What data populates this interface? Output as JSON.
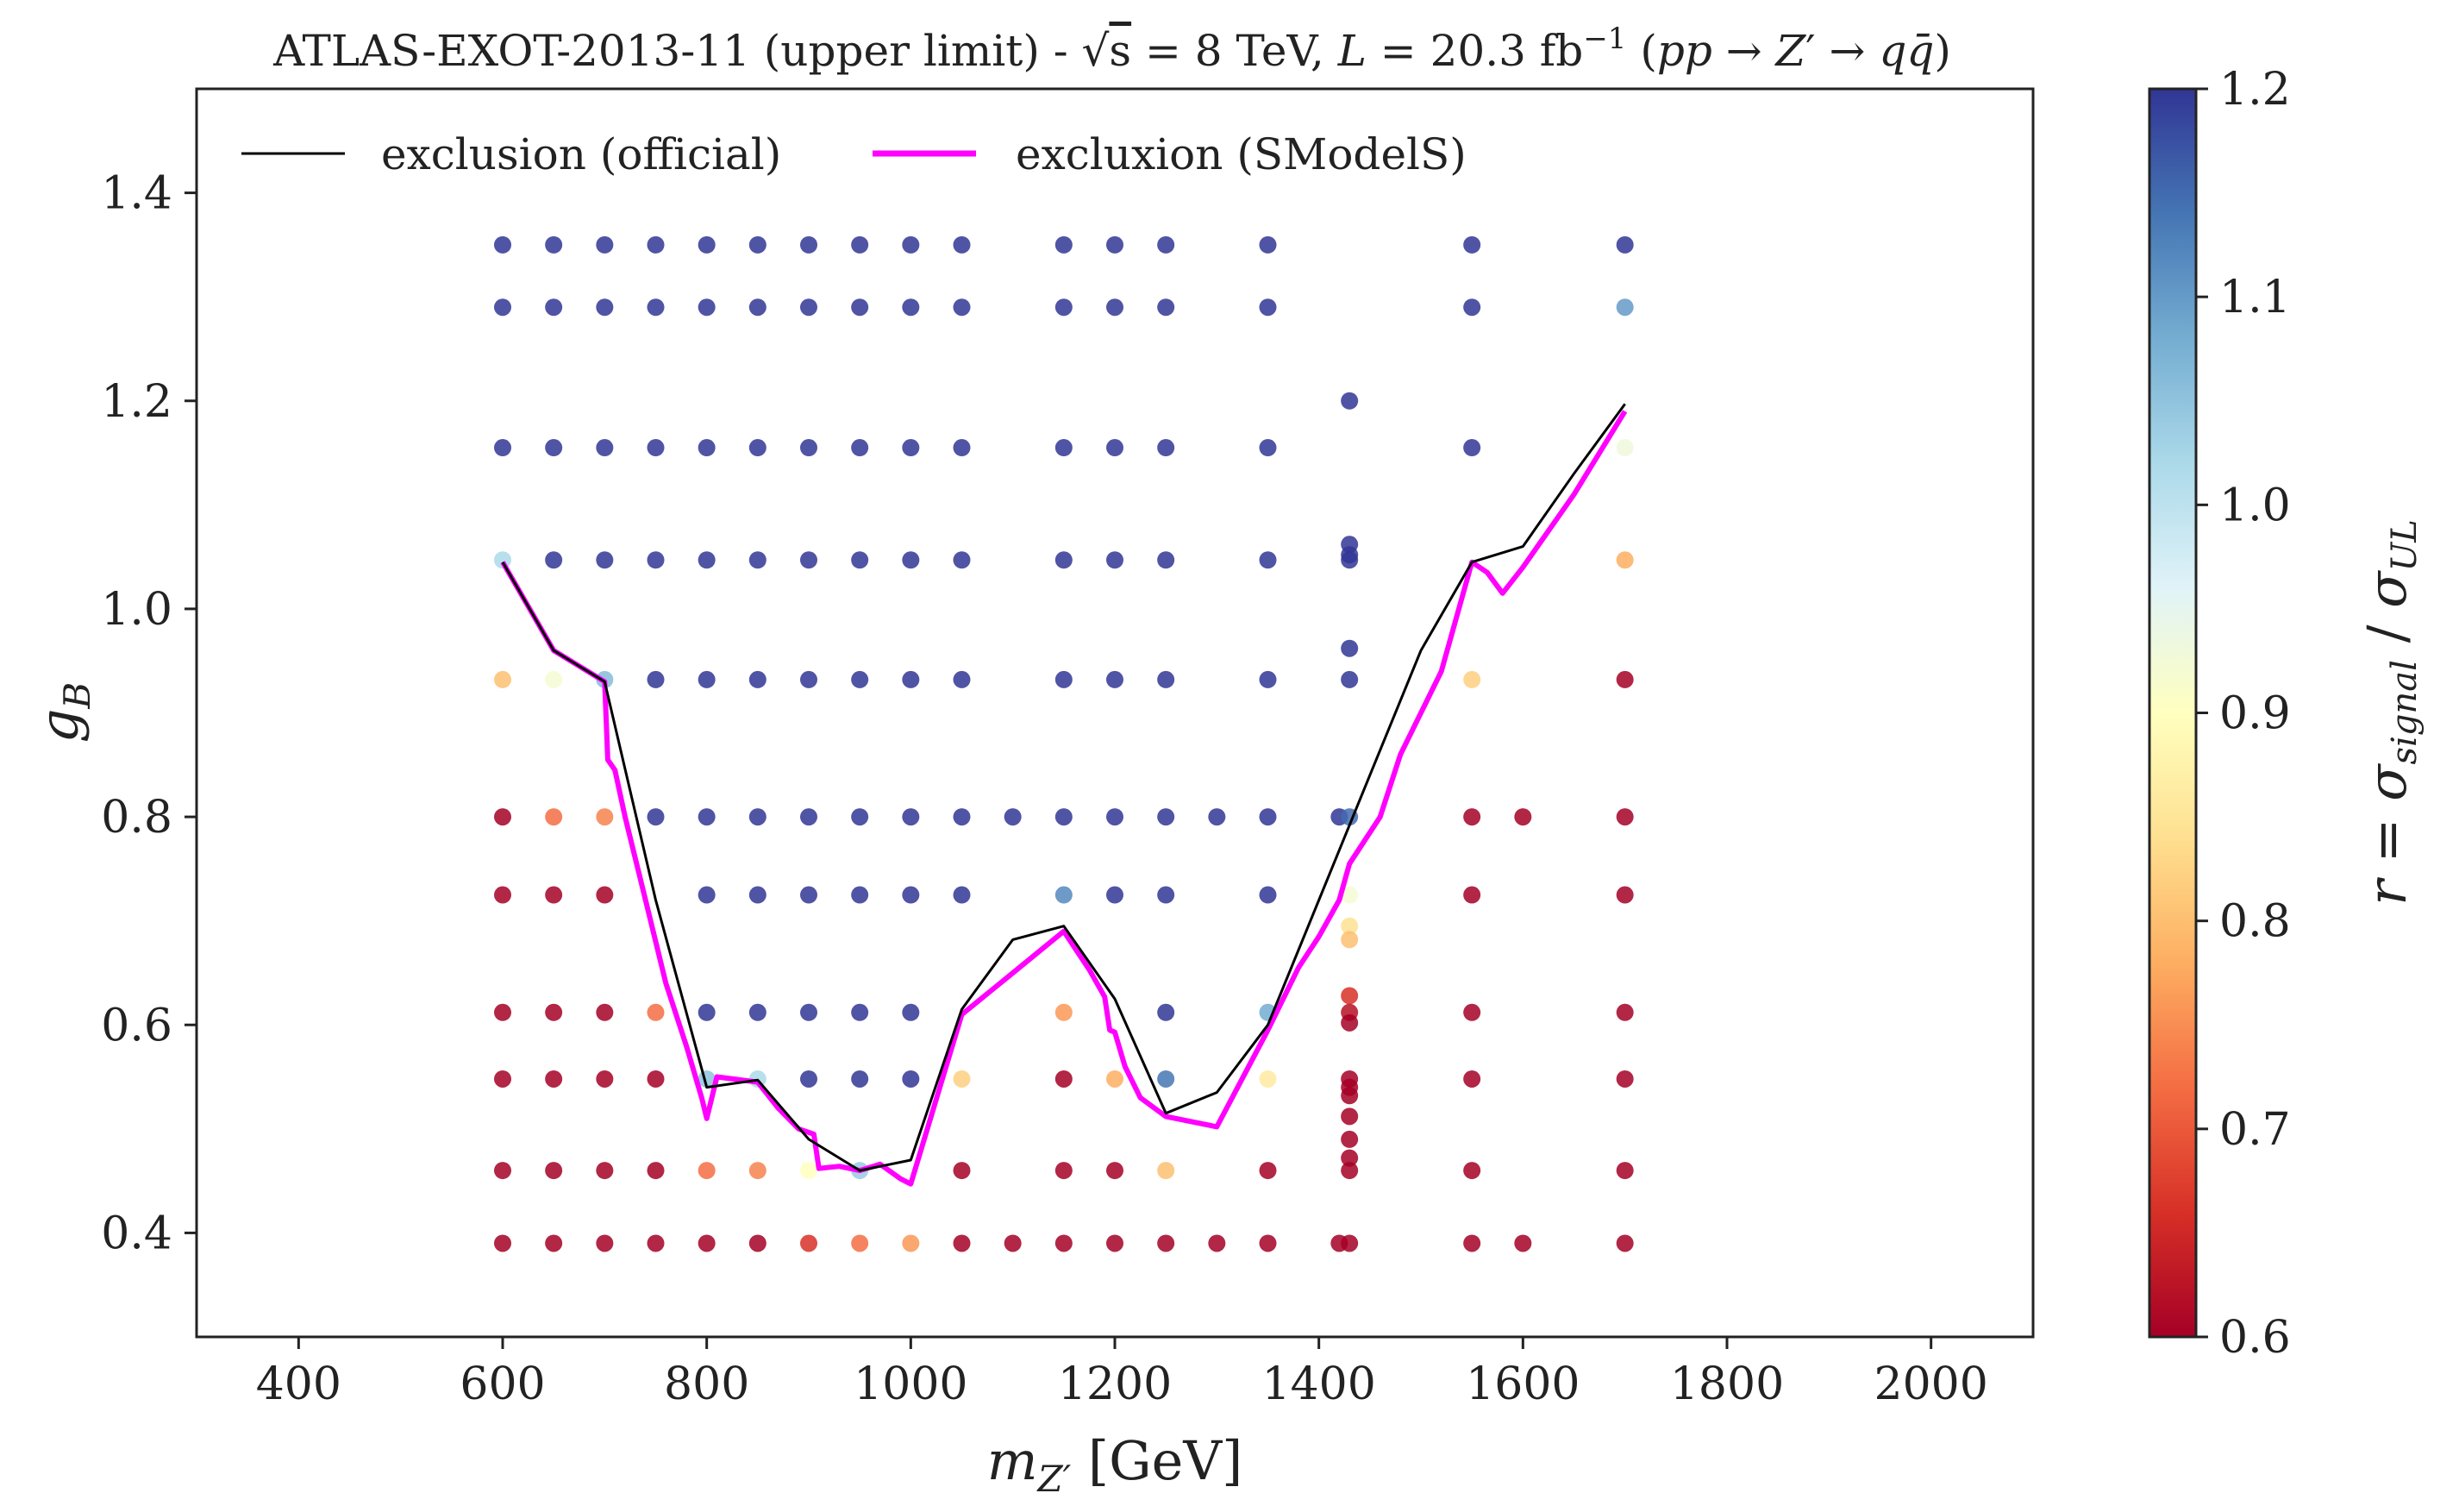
{
  "chart_data": {
    "type": "scatter",
    "title": "ATLAS-EXOT-2013-11 (upper limit) - √s = 8 TeV, L = 20.3 fb⁻¹ (pp → Z′ → qq̄)",
    "xlabel": "m_{Z′} [GeV]",
    "ylabel": "g_B",
    "xlim": [
      300,
      2100
    ],
    "ylim": [
      0.3,
      1.5
    ],
    "xticks": [
      400,
      600,
      800,
      1000,
      1200,
      1400,
      1600,
      1800,
      2000
    ],
    "yticks": [
      0.4,
      0.6,
      0.8,
      1.0,
      1.2,
      1.4
    ],
    "xtick_labels": [
      "400",
      "600",
      "800",
      "1000",
      "1200",
      "1400",
      "1600",
      "1800",
      "2000"
    ],
    "ytick_labels": [
      "0.4",
      "0.6",
      "0.8",
      "1.0",
      "1.2",
      "1.4"
    ],
    "grid": false,
    "legend_position": "top-left",
    "legend": [
      {
        "label": "exclusion (official)",
        "color": "#000000"
      },
      {
        "label": "excluxion (SModelS)",
        "color": "#ff00ff"
      }
    ],
    "colorbar": {
      "label": "r = σ_signal / σ_UL",
      "range": [
        0.6,
        1.2
      ],
      "ticks": [
        0.6,
        0.7,
        0.8,
        0.9,
        1.0,
        1.1,
        1.2
      ],
      "tick_labels": [
        "0.6",
        "0.7",
        "0.8",
        "0.9",
        "1.0",
        "1.1",
        "1.2"
      ],
      "colormap": "RdYlBu",
      "stops": [
        "#a50026",
        "#d73027",
        "#f46d43",
        "#fdae61",
        "#fee090",
        "#ffffbf",
        "#e0f3f8",
        "#abd9e9",
        "#74add1",
        "#4575b4",
        "#313695"
      ]
    },
    "official_curve": {
      "x": [
        600,
        650,
        700,
        750,
        800,
        850,
        900,
        950,
        1000,
        1050,
        1100,
        1150,
        1200,
        1250,
        1300,
        1350,
        1400,
        1450,
        1500,
        1550,
        1600,
        1650,
        1700
      ],
      "y": [
        1.045,
        0.96,
        0.93,
        0.72,
        0.54,
        0.547,
        0.49,
        0.46,
        0.47,
        0.615,
        0.682,
        0.695,
        0.625,
        0.515,
        0.535,
        0.6,
        0.72,
        0.84,
        0.96,
        1.045,
        1.06,
        1.13,
        1.197
      ]
    },
    "smodels_curve": {
      "x": [
        600,
        650,
        700,
        703,
        710,
        720,
        740,
        760,
        780,
        795,
        800,
        810,
        850,
        870,
        890,
        905,
        910,
        930,
        950,
        970,
        990,
        1000,
        1050,
        1100,
        1150,
        1175,
        1190,
        1195,
        1200,
        1210,
        1225,
        1250,
        1300,
        1350,
        1380,
        1400,
        1420,
        1430,
        1440,
        1460,
        1480,
        1520,
        1550,
        1565,
        1580,
        1600,
        1650,
        1700
      ],
      "y": [
        1.045,
        0.96,
        0.93,
        0.855,
        0.845,
        0.8,
        0.72,
        0.64,
        0.58,
        0.53,
        0.51,
        0.55,
        0.545,
        0.52,
        0.5,
        0.495,
        0.462,
        0.464,
        0.46,
        0.466,
        0.452,
        0.447,
        0.61,
        0.65,
        0.69,
        0.653,
        0.627,
        0.595,
        0.593,
        0.56,
        0.53,
        0.512,
        0.502,
        0.595,
        0.655,
        0.685,
        0.72,
        0.755,
        0.77,
        0.8,
        0.86,
        0.94,
        1.045,
        1.035,
        1.015,
        1.04,
        1.11,
        1.19
      ]
    },
    "points": [
      {
        "x": 600,
        "y": 1.35,
        "r": 1.2
      },
      {
        "x": 650,
        "y": 1.35,
        "r": 1.2
      },
      {
        "x": 700,
        "y": 1.35,
        "r": 1.2
      },
      {
        "x": 750,
        "y": 1.35,
        "r": 1.2
      },
      {
        "x": 800,
        "y": 1.35,
        "r": 1.2
      },
      {
        "x": 850,
        "y": 1.35,
        "r": 1.2
      },
      {
        "x": 900,
        "y": 1.35,
        "r": 1.2
      },
      {
        "x": 950,
        "y": 1.35,
        "r": 1.2
      },
      {
        "x": 1000,
        "y": 1.35,
        "r": 1.2
      },
      {
        "x": 1050,
        "y": 1.35,
        "r": 1.2
      },
      {
        "x": 1150,
        "y": 1.35,
        "r": 1.2
      },
      {
        "x": 1200,
        "y": 1.35,
        "r": 1.2
      },
      {
        "x": 1250,
        "y": 1.35,
        "r": 1.2
      },
      {
        "x": 1350,
        "y": 1.35,
        "r": 1.2
      },
      {
        "x": 1550,
        "y": 1.35,
        "r": 1.2
      },
      {
        "x": 1700,
        "y": 1.35,
        "r": 1.2
      },
      {
        "x": 600,
        "y": 1.29,
        "r": 1.2
      },
      {
        "x": 650,
        "y": 1.29,
        "r": 1.2
      },
      {
        "x": 700,
        "y": 1.29,
        "r": 1.2
      },
      {
        "x": 750,
        "y": 1.29,
        "r": 1.2
      },
      {
        "x": 800,
        "y": 1.29,
        "r": 1.2
      },
      {
        "x": 850,
        "y": 1.29,
        "r": 1.2
      },
      {
        "x": 900,
        "y": 1.29,
        "r": 1.2
      },
      {
        "x": 950,
        "y": 1.29,
        "r": 1.2
      },
      {
        "x": 1000,
        "y": 1.29,
        "r": 1.2
      },
      {
        "x": 1050,
        "y": 1.29,
        "r": 1.2
      },
      {
        "x": 1150,
        "y": 1.29,
        "r": 1.2
      },
      {
        "x": 1200,
        "y": 1.29,
        "r": 1.2
      },
      {
        "x": 1250,
        "y": 1.29,
        "r": 1.2
      },
      {
        "x": 1350,
        "y": 1.29,
        "r": 1.2
      },
      {
        "x": 1550,
        "y": 1.29,
        "r": 1.2
      },
      {
        "x": 1700,
        "y": 1.29,
        "r": 1.1
      },
      {
        "x": 1430,
        "y": 1.2,
        "r": 1.2
      },
      {
        "x": 600,
        "y": 1.155,
        "r": 1.2
      },
      {
        "x": 650,
        "y": 1.155,
        "r": 1.2
      },
      {
        "x": 700,
        "y": 1.155,
        "r": 1.2
      },
      {
        "x": 750,
        "y": 1.155,
        "r": 1.2
      },
      {
        "x": 800,
        "y": 1.155,
        "r": 1.2
      },
      {
        "x": 850,
        "y": 1.155,
        "r": 1.2
      },
      {
        "x": 900,
        "y": 1.155,
        "r": 1.2
      },
      {
        "x": 950,
        "y": 1.155,
        "r": 1.2
      },
      {
        "x": 1000,
        "y": 1.155,
        "r": 1.2
      },
      {
        "x": 1050,
        "y": 1.155,
        "r": 1.2
      },
      {
        "x": 1150,
        "y": 1.155,
        "r": 1.2
      },
      {
        "x": 1200,
        "y": 1.155,
        "r": 1.2
      },
      {
        "x": 1250,
        "y": 1.155,
        "r": 1.2
      },
      {
        "x": 1350,
        "y": 1.155,
        "r": 1.2
      },
      {
        "x": 1550,
        "y": 1.155,
        "r": 1.2
      },
      {
        "x": 1700,
        "y": 1.155,
        "r": 0.93
      },
      {
        "x": 1430,
        "y": 1.062,
        "r": 1.2
      },
      {
        "x": 1430,
        "y": 1.052,
        "r": 1.2
      },
      {
        "x": 600,
        "y": 1.047,
        "r": 1.02
      },
      {
        "x": 650,
        "y": 1.047,
        "r": 1.2
      },
      {
        "x": 700,
        "y": 1.047,
        "r": 1.2
      },
      {
        "x": 750,
        "y": 1.047,
        "r": 1.2
      },
      {
        "x": 800,
        "y": 1.047,
        "r": 1.2
      },
      {
        "x": 850,
        "y": 1.047,
        "r": 1.2
      },
      {
        "x": 900,
        "y": 1.047,
        "r": 1.2
      },
      {
        "x": 950,
        "y": 1.047,
        "r": 1.2
      },
      {
        "x": 1000,
        "y": 1.047,
        "r": 1.2
      },
      {
        "x": 1050,
        "y": 1.047,
        "r": 1.2
      },
      {
        "x": 1150,
        "y": 1.047,
        "r": 1.2
      },
      {
        "x": 1200,
        "y": 1.047,
        "r": 1.2
      },
      {
        "x": 1250,
        "y": 1.047,
        "r": 1.2
      },
      {
        "x": 1350,
        "y": 1.047,
        "r": 1.2
      },
      {
        "x": 1430,
        "y": 1.047,
        "r": 1.2
      },
      {
        "x": 1700,
        "y": 1.047,
        "r": 0.78
      },
      {
        "x": 1430,
        "y": 0.962,
        "r": 1.2
      },
      {
        "x": 600,
        "y": 0.932,
        "r": 0.8
      },
      {
        "x": 650,
        "y": 0.932,
        "r": 0.92
      },
      {
        "x": 700,
        "y": 0.932,
        "r": 1.06
      },
      {
        "x": 750,
        "y": 0.932,
        "r": 1.2
      },
      {
        "x": 800,
        "y": 0.932,
        "r": 1.2
      },
      {
        "x": 850,
        "y": 0.932,
        "r": 1.2
      },
      {
        "x": 900,
        "y": 0.932,
        "r": 1.2
      },
      {
        "x": 950,
        "y": 0.932,
        "r": 1.2
      },
      {
        "x": 1000,
        "y": 0.932,
        "r": 1.2
      },
      {
        "x": 1050,
        "y": 0.932,
        "r": 1.2
      },
      {
        "x": 1150,
        "y": 0.932,
        "r": 1.2
      },
      {
        "x": 1200,
        "y": 0.932,
        "r": 1.2
      },
      {
        "x": 1250,
        "y": 0.932,
        "r": 1.2
      },
      {
        "x": 1350,
        "y": 0.932,
        "r": 1.2
      },
      {
        "x": 1430,
        "y": 0.932,
        "r": 1.2
      },
      {
        "x": 1550,
        "y": 0.932,
        "r": 0.82
      },
      {
        "x": 1700,
        "y": 0.932,
        "r": 0.6
      },
      {
        "x": 600,
        "y": 0.8,
        "r": 0.6
      },
      {
        "x": 650,
        "y": 0.8,
        "r": 0.72
      },
      {
        "x": 700,
        "y": 0.8,
        "r": 0.74
      },
      {
        "x": 750,
        "y": 0.8,
        "r": 1.2
      },
      {
        "x": 800,
        "y": 0.8,
        "r": 1.2
      },
      {
        "x": 850,
        "y": 0.8,
        "r": 1.2
      },
      {
        "x": 900,
        "y": 0.8,
        "r": 1.2
      },
      {
        "x": 950,
        "y": 0.8,
        "r": 1.2
      },
      {
        "x": 1000,
        "y": 0.8,
        "r": 1.2
      },
      {
        "x": 1050,
        "y": 0.8,
        "r": 1.2
      },
      {
        "x": 1100,
        "y": 0.8,
        "r": 1.2
      },
      {
        "x": 1150,
        "y": 0.8,
        "r": 1.2
      },
      {
        "x": 1200,
        "y": 0.8,
        "r": 1.2
      },
      {
        "x": 1250,
        "y": 0.8,
        "r": 1.2
      },
      {
        "x": 1300,
        "y": 0.8,
        "r": 1.2
      },
      {
        "x": 1350,
        "y": 0.8,
        "r": 1.2
      },
      {
        "x": 1420,
        "y": 0.8,
        "r": 1.2
      },
      {
        "x": 1430,
        "y": 0.8,
        "r": 1.15
      },
      {
        "x": 1550,
        "y": 0.8,
        "r": 0.6
      },
      {
        "x": 1600,
        "y": 0.8,
        "r": 0.6
      },
      {
        "x": 1700,
        "y": 0.8,
        "r": 0.6
      },
      {
        "x": 600,
        "y": 0.725,
        "r": 0.6
      },
      {
        "x": 650,
        "y": 0.725,
        "r": 0.6
      },
      {
        "x": 700,
        "y": 0.725,
        "r": 0.6
      },
      {
        "x": 800,
        "y": 0.725,
        "r": 1.2
      },
      {
        "x": 850,
        "y": 0.725,
        "r": 1.2
      },
      {
        "x": 900,
        "y": 0.725,
        "r": 1.2
      },
      {
        "x": 950,
        "y": 0.725,
        "r": 1.2
      },
      {
        "x": 1000,
        "y": 0.725,
        "r": 1.2
      },
      {
        "x": 1050,
        "y": 0.725,
        "r": 1.2
      },
      {
        "x": 1150,
        "y": 0.725,
        "r": 1.12
      },
      {
        "x": 1200,
        "y": 0.725,
        "r": 1.2
      },
      {
        "x": 1250,
        "y": 0.725,
        "r": 1.2
      },
      {
        "x": 1350,
        "y": 0.725,
        "r": 1.2
      },
      {
        "x": 1430,
        "y": 0.725,
        "r": 0.92
      },
      {
        "x": 1550,
        "y": 0.725,
        "r": 0.6
      },
      {
        "x": 1700,
        "y": 0.725,
        "r": 0.6
      },
      {
        "x": 1430,
        "y": 0.695,
        "r": 0.84
      },
      {
        "x": 1430,
        "y": 0.682,
        "r": 0.8
      },
      {
        "x": 1430,
        "y": 0.628,
        "r": 0.66
      },
      {
        "x": 600,
        "y": 0.612,
        "r": 0.6
      },
      {
        "x": 650,
        "y": 0.612,
        "r": 0.6
      },
      {
        "x": 700,
        "y": 0.612,
        "r": 0.6
      },
      {
        "x": 750,
        "y": 0.612,
        "r": 0.72
      },
      {
        "x": 800,
        "y": 0.612,
        "r": 1.2
      },
      {
        "x": 850,
        "y": 0.612,
        "r": 1.2
      },
      {
        "x": 900,
        "y": 0.612,
        "r": 1.2
      },
      {
        "x": 950,
        "y": 0.612,
        "r": 1.2
      },
      {
        "x": 1000,
        "y": 0.612,
        "r": 1.2
      },
      {
        "x": 1150,
        "y": 0.612,
        "r": 0.76
      },
      {
        "x": 1250,
        "y": 0.612,
        "r": 1.2
      },
      {
        "x": 1350,
        "y": 0.612,
        "r": 1.08
      },
      {
        "x": 1430,
        "y": 0.612,
        "r": 0.62
      },
      {
        "x": 1550,
        "y": 0.612,
        "r": 0.6
      },
      {
        "x": 1700,
        "y": 0.612,
        "r": 0.6
      },
      {
        "x": 1430,
        "y": 0.602,
        "r": 0.6
      },
      {
        "x": 600,
        "y": 0.548,
        "r": 0.6
      },
      {
        "x": 650,
        "y": 0.548,
        "r": 0.6
      },
      {
        "x": 700,
        "y": 0.548,
        "r": 0.6
      },
      {
        "x": 750,
        "y": 0.548,
        "r": 0.6
      },
      {
        "x": 800,
        "y": 0.548,
        "r": 1.05
      },
      {
        "x": 850,
        "y": 0.548,
        "r": 1.02
      },
      {
        "x": 900,
        "y": 0.548,
        "r": 1.2
      },
      {
        "x": 950,
        "y": 0.548,
        "r": 1.2
      },
      {
        "x": 1000,
        "y": 0.548,
        "r": 1.2
      },
      {
        "x": 1050,
        "y": 0.548,
        "r": 0.82
      },
      {
        "x": 1150,
        "y": 0.548,
        "r": 0.6
      },
      {
        "x": 1200,
        "y": 0.548,
        "r": 0.78
      },
      {
        "x": 1250,
        "y": 0.548,
        "r": 1.14
      },
      {
        "x": 1350,
        "y": 0.548,
        "r": 0.86
      },
      {
        "x": 1430,
        "y": 0.548,
        "r": 0.6
      },
      {
        "x": 1550,
        "y": 0.548,
        "r": 0.6
      },
      {
        "x": 1700,
        "y": 0.548,
        "r": 0.6
      },
      {
        "x": 1430,
        "y": 0.54,
        "r": 0.6
      },
      {
        "x": 1430,
        "y": 0.532,
        "r": 0.6
      },
      {
        "x": 1430,
        "y": 0.512,
        "r": 0.6
      },
      {
        "x": 1430,
        "y": 0.49,
        "r": 0.6
      },
      {
        "x": 1430,
        "y": 0.472,
        "r": 0.6
      },
      {
        "x": 600,
        "y": 0.46,
        "r": 0.6
      },
      {
        "x": 650,
        "y": 0.46,
        "r": 0.6
      },
      {
        "x": 700,
        "y": 0.46,
        "r": 0.6
      },
      {
        "x": 750,
        "y": 0.46,
        "r": 0.6
      },
      {
        "x": 800,
        "y": 0.46,
        "r": 0.72
      },
      {
        "x": 850,
        "y": 0.46,
        "r": 0.74
      },
      {
        "x": 900,
        "y": 0.46,
        "r": 0.9
      },
      {
        "x": 950,
        "y": 0.46,
        "r": 1.04
      },
      {
        "x": 1050,
        "y": 0.46,
        "r": 0.6
      },
      {
        "x": 1150,
        "y": 0.46,
        "r": 0.6
      },
      {
        "x": 1200,
        "y": 0.46,
        "r": 0.6
      },
      {
        "x": 1250,
        "y": 0.46,
        "r": 0.8
      },
      {
        "x": 1350,
        "y": 0.46,
        "r": 0.6
      },
      {
        "x": 1430,
        "y": 0.46,
        "r": 0.6
      },
      {
        "x": 1550,
        "y": 0.46,
        "r": 0.6
      },
      {
        "x": 1700,
        "y": 0.46,
        "r": 0.6
      },
      {
        "x": 600,
        "y": 0.39,
        "r": 0.6
      },
      {
        "x": 650,
        "y": 0.39,
        "r": 0.6
      },
      {
        "x": 700,
        "y": 0.39,
        "r": 0.6
      },
      {
        "x": 750,
        "y": 0.39,
        "r": 0.6
      },
      {
        "x": 800,
        "y": 0.39,
        "r": 0.6
      },
      {
        "x": 850,
        "y": 0.39,
        "r": 0.6
      },
      {
        "x": 900,
        "y": 0.39,
        "r": 0.66
      },
      {
        "x": 950,
        "y": 0.39,
        "r": 0.72
      },
      {
        "x": 1000,
        "y": 0.39,
        "r": 0.76
      },
      {
        "x": 1050,
        "y": 0.39,
        "r": 0.6
      },
      {
        "x": 1100,
        "y": 0.39,
        "r": 0.6
      },
      {
        "x": 1150,
        "y": 0.39,
        "r": 0.6
      },
      {
        "x": 1200,
        "y": 0.39,
        "r": 0.6
      },
      {
        "x": 1250,
        "y": 0.39,
        "r": 0.6
      },
      {
        "x": 1300,
        "y": 0.39,
        "r": 0.6
      },
      {
        "x": 1350,
        "y": 0.39,
        "r": 0.6
      },
      {
        "x": 1420,
        "y": 0.39,
        "r": 0.6
      },
      {
        "x": 1430,
        "y": 0.39,
        "r": 0.6
      },
      {
        "x": 1550,
        "y": 0.39,
        "r": 0.6
      },
      {
        "x": 1600,
        "y": 0.39,
        "r": 0.6
      },
      {
        "x": 1700,
        "y": 0.39,
        "r": 0.6
      }
    ]
  }
}
